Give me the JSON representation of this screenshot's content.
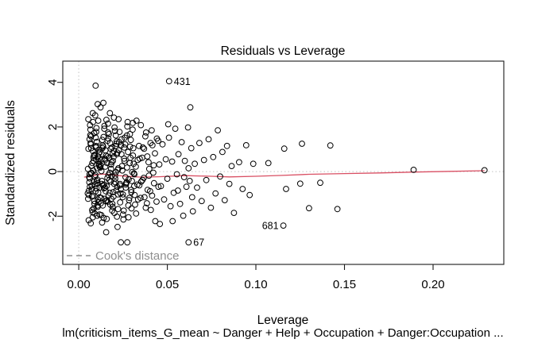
{
  "figure": {
    "title": "Residuals vs Leverage",
    "xlabel": "Leverage",
    "ylabel": "Standardized residuals",
    "caption": "lm(criticism_items_G_mean ~ Danger + Help + Occupation + Danger:Occupation  ...",
    "legend_label": "Cook's distance"
  },
  "colors": {
    "points": "#000000",
    "smoother_line": "#d94f63",
    "reference_dotted": "#c3c3c3",
    "legend_gray": "#8f8f8f",
    "axis": "#1a1a1a",
    "background": "#ffffff"
  },
  "chart_data": {
    "type": "scatter",
    "title": "Residuals vs Leverage",
    "xlabel": "Leverage",
    "ylabel": "Standardized residuals",
    "caption": "lm(criticism_items_G_mean ~ Danger + Help + Occupation + Danger:Occupation  ...",
    "xlim": [
      -0.009,
      0.2399
    ],
    "ylim": [
      -4.16,
      4.95
    ],
    "grid": false,
    "x_ticks": [
      {
        "v": 0.0,
        "label": "0.00"
      },
      {
        "v": 0.05,
        "label": "0.05"
      },
      {
        "v": 0.1,
        "label": "0.10"
      },
      {
        "v": 0.15,
        "label": "0.15"
      },
      {
        "v": 0.2,
        "label": "0.20"
      }
    ],
    "y_ticks": [
      {
        "v": -2,
        "label": "-2"
      },
      {
        "v": 0,
        "label": "0"
      },
      {
        "v": 2,
        "label": "2"
      },
      {
        "v": 4,
        "label": "4"
      }
    ],
    "reference_lines": {
      "horizontal_at": 0,
      "vertical_at": 0,
      "style": "dotted"
    },
    "legend": {
      "label": "Cook's distance",
      "position": "bottom-left",
      "line_style": "dashed"
    },
    "labeled_points": [
      {
        "id": "431",
        "x": 0.051,
        "y": 4.05,
        "side": "right"
      },
      {
        "id": "67",
        "x": 0.062,
        "y": -3.17,
        "side": "right"
      },
      {
        "id": "681",
        "x": 0.1155,
        "y": -2.42,
        "side": "left"
      }
    ],
    "smoother": [
      [
        0.003,
        -0.25
      ],
      [
        0.008,
        -0.18
      ],
      [
        0.013,
        -0.11
      ],
      [
        0.018,
        -0.14
      ],
      [
        0.025,
        -0.2
      ],
      [
        0.035,
        -0.25
      ],
      [
        0.045,
        -0.23
      ],
      [
        0.06,
        -0.18
      ],
      [
        0.075,
        -0.21
      ],
      [
        0.085,
        -0.24
      ],
      [
        0.1,
        -0.21
      ],
      [
        0.115,
        -0.17
      ],
      [
        0.13,
        -0.12
      ],
      [
        0.15,
        -0.09
      ],
      [
        0.17,
        -0.06
      ],
      [
        0.19,
        -0.02
      ],
      [
        0.21,
        0.01
      ],
      [
        0.229,
        0.04
      ]
    ],
    "points": [
      [
        0.0052,
        0.12
      ],
      [
        0.006,
        -0.48
      ],
      [
        0.0068,
        1.22
      ],
      [
        0.0075,
        -1.12
      ],
      [
        0.0083,
        0.63
      ],
      [
        0.0091,
        -0.22
      ],
      [
        0.0099,
        1.78
      ],
      [
        0.0107,
        -1.58
      ],
      [
        0.0115,
        0.33
      ],
      [
        0.0057,
        -0.86
      ],
      [
        0.0064,
        2.08
      ],
      [
        0.0072,
        -0.06
      ],
      [
        0.008,
        0.92
      ],
      [
        0.0088,
        -1.32
      ],
      [
        0.0096,
        1.52
      ],
      [
        0.0104,
        -1.98
      ],
      [
        0.0112,
        0.45
      ],
      [
        0.0119,
        -0.71
      ],
      [
        0.0054,
        2.35
      ],
      [
        0.0062,
        -0.31
      ],
      [
        0.007,
        1.05
      ],
      [
        0.0078,
        -1.82
      ],
      [
        0.0086,
        0.71
      ],
      [
        0.0094,
        -0.15
      ],
      [
        0.0102,
        1.33
      ],
      [
        0.011,
        -0.95
      ],
      [
        0.0118,
        0.21
      ],
      [
        0.0056,
        -2.18
      ],
      [
        0.0065,
        1.63
      ],
      [
        0.0073,
        -0.62
      ],
      [
        0.0081,
        2.22
      ],
      [
        0.0089,
        -1.45
      ],
      [
        0.0097,
        0.55
      ],
      [
        0.0105,
        -0.36
      ],
      [
        0.0113,
        0.98
      ],
      [
        0.0058,
        -1.05
      ],
      [
        0.0066,
        1.88
      ],
      [
        0.0074,
        -0.79
      ],
      [
        0.0082,
        0.05
      ],
      [
        0.009,
        -1.88
      ],
      [
        0.0098,
        1.15
      ],
      [
        0.0106,
        -0.52
      ],
      [
        0.0114,
        0.82
      ],
      [
        0.0053,
        -1.22
      ],
      [
        0.0061,
        1.45
      ],
      [
        0.0069,
        -0.08
      ],
      [
        0.0077,
        0.38
      ],
      [
        0.0085,
        -1.65
      ],
      [
        0.0093,
        2.52
      ],
      [
        0.0101,
        -0.42
      ],
      [
        0.0109,
        0.68
      ],
      [
        0.0117,
        -1.15
      ],
      [
        0.0055,
        1.02
      ],
      [
        0.0063,
        -0.68
      ],
      [
        0.0071,
        0.25
      ],
      [
        0.0079,
        -2.05
      ],
      [
        0.0087,
        1.72
      ],
      [
        0.0095,
        -0.88
      ],
      [
        0.0103,
        0.15
      ],
      [
        0.0111,
        -1.38
      ],
      [
        0.0119,
        0.88
      ],
      [
        0.0059,
        -0.25
      ],
      [
        0.0067,
        1.28
      ],
      [
        0.0076,
        -1.72
      ],
      [
        0.0084,
        0.48
      ],
      [
        0.0092,
        -0.58
      ],
      [
        0.01,
        1.95
      ],
      [
        0.0108,
        -1.25
      ],
      [
        0.0116,
        0.58
      ],
      [
        0.0051,
        -0.98
      ],
      [
        0.0095,
        3.85
      ],
      [
        0.0068,
        -2.32
      ],
      [
        0.0079,
        2.62
      ],
      [
        0.0088,
        -0.45
      ],
      [
        0.0097,
        1.08
      ],
      [
        0.0106,
        -1.52
      ],
      [
        0.0115,
        0.28
      ],
      [
        0.0061,
        -0.12
      ],
      [
        0.007,
        1.58
      ],
      [
        0.008,
        -1.08
      ],
      [
        0.009,
        0.75
      ],
      [
        0.01,
        -0.75
      ],
      [
        0.011,
        2.28
      ],
      [
        0.0117,
        -1.92
      ],
      [
        0.0107,
        3.02
      ],
      [
        0.0122,
        0.18
      ],
      [
        0.013,
        -0.55
      ],
      [
        0.0138,
        1.12
      ],
      [
        0.0146,
        -1.22
      ],
      [
        0.0154,
        0.72
      ],
      [
        0.0162,
        -0.28
      ],
      [
        0.017,
        1.68
      ],
      [
        0.0178,
        -1.48
      ],
      [
        0.0186,
        0.42
      ],
      [
        0.0194,
        -0.92
      ],
      [
        0.0202,
        1.98
      ],
      [
        0.021,
        -0.02
      ],
      [
        0.0218,
        0.85
      ],
      [
        0.0125,
        -1.42
      ],
      [
        0.0133,
        1.42
      ],
      [
        0.0141,
        -2.08
      ],
      [
        0.0149,
        0.52
      ],
      [
        0.0157,
        -0.65
      ],
      [
        0.0165,
        2.15
      ],
      [
        0.0173,
        -0.38
      ],
      [
        0.0181,
        1.02
      ],
      [
        0.0189,
        -1.75
      ],
      [
        0.0197,
        0.65
      ],
      [
        0.0205,
        -0.18
      ],
      [
        0.0213,
        1.25
      ],
      [
        0.0221,
        -1.02
      ],
      [
        0.0124,
        0.28
      ],
      [
        0.0132,
        -2.28
      ],
      [
        0.014,
        1.55
      ],
      [
        0.0148,
        -0.72
      ],
      [
        0.0156,
        2.32
      ],
      [
        0.0164,
        -1.35
      ],
      [
        0.0172,
        0.62
      ],
      [
        0.018,
        -0.45
      ],
      [
        0.0188,
        1.08
      ],
      [
        0.0196,
        -1.12
      ],
      [
        0.0204,
        1.82
      ],
      [
        0.0212,
        -0.85
      ],
      [
        0.022,
        0.08
      ],
      [
        0.0127,
        -1.95
      ],
      [
        0.0135,
        1.18
      ],
      [
        0.0143,
        -0.58
      ],
      [
        0.0151,
        0.95
      ],
      [
        0.0159,
        -1.28
      ],
      [
        0.0167,
        1.48
      ],
      [
        0.0175,
        -0.05
      ],
      [
        0.0183,
        0.32
      ],
      [
        0.0191,
        -1.58
      ],
      [
        0.0199,
        2.42
      ],
      [
        0.0207,
        -0.48
      ],
      [
        0.0215,
        0.78
      ],
      [
        0.0126,
        -1.18
      ],
      [
        0.0134,
        1.05
      ],
      [
        0.0142,
        -0.75
      ],
      [
        0.015,
        0.22
      ],
      [
        0.0158,
        -2.12
      ],
      [
        0.0166,
        1.75
      ],
      [
        0.0174,
        -0.95
      ],
      [
        0.0182,
        0.12
      ],
      [
        0.019,
        -1.45
      ],
      [
        0.0198,
        0.92
      ],
      [
        0.0206,
        -0.32
      ],
      [
        0.0214,
        1.35
      ],
      [
        0.0222,
        -1.68
      ],
      [
        0.0129,
        0.55
      ],
      [
        0.0137,
        -0.62
      ],
      [
        0.0145,
        2.05
      ],
      [
        0.0153,
        -1.32
      ],
      [
        0.0161,
        0.68
      ],
      [
        0.0169,
        -1.08
      ],
      [
        0.0177,
        1.28
      ],
      [
        0.0185,
        -0.22
      ],
      [
        0.0193,
        0.48
      ],
      [
        0.0201,
        -1.85
      ],
      [
        0.0209,
        1.62
      ],
      [
        0.0217,
        -0.68
      ],
      [
        0.0128,
        0.02
      ],
      [
        0.0136,
        -1.52
      ],
      [
        0.0144,
        1.92
      ],
      [
        0.0152,
        -0.88
      ],
      [
        0.016,
        0.38
      ],
      [
        0.0168,
        -0.15
      ],
      [
        0.0176,
        2.62
      ],
      [
        0.0184,
        -1.22
      ],
      [
        0.0192,
        0.82
      ],
      [
        0.02,
        -0.55
      ],
      [
        0.0208,
        1.15
      ],
      [
        0.0216,
        -2.02
      ],
      [
        0.0123,
        2.88
      ],
      [
        0.0131,
        -0.42
      ],
      [
        0.0139,
        3.08
      ],
      [
        0.0147,
        0.58
      ],
      [
        0.0155,
        -2.72
      ],
      [
        0.0163,
        1.38
      ],
      [
        0.0219,
        -2.48
      ],
      [
        0.0224,
        0.15
      ],
      [
        0.0232,
        -0.62
      ],
      [
        0.024,
        1.18
      ],
      [
        0.0248,
        -1.15
      ],
      [
        0.0256,
        0.58
      ],
      [
        0.0264,
        -0.25
      ],
      [
        0.0272,
        1.62
      ],
      [
        0.028,
        -1.52
      ],
      [
        0.0288,
        0.38
      ],
      [
        0.0296,
        -0.82
      ],
      [
        0.0304,
        1.88
      ],
      [
        0.0312,
        -0.08
      ],
      [
        0.0226,
        0.95
      ],
      [
        0.0234,
        -1.38
      ],
      [
        0.0242,
        1.45
      ],
      [
        0.025,
        -1.92
      ],
      [
        0.0258,
        0.48
      ],
      [
        0.0266,
        -0.58
      ],
      [
        0.0274,
        2.02
      ],
      [
        0.0282,
        -0.35
      ],
      [
        0.029,
        1.12
      ],
      [
        0.0298,
        -1.65
      ],
      [
        0.0306,
        0.72
      ],
      [
        0.0314,
        -0.12
      ],
      [
        0.0228,
        1.32
      ],
      [
        0.0236,
        -0.98
      ],
      [
        0.0244,
        0.25
      ],
      [
        0.0252,
        -2.15
      ],
      [
        0.026,
        1.52
      ],
      [
        0.0268,
        -0.52
      ],
      [
        0.0276,
        2.22
      ],
      [
        0.0284,
        -1.28
      ],
      [
        0.0292,
        0.62
      ],
      [
        0.03,
        -0.42
      ],
      [
        0.0308,
        1.05
      ],
      [
        0.0316,
        -1.05
      ],
      [
        0.023,
        1.78
      ],
      [
        0.0238,
        -0.78
      ],
      [
        0.0246,
        0.05
      ],
      [
        0.0254,
        -1.75
      ],
      [
        0.0262,
        1.22
      ],
      [
        0.027,
        -0.48
      ],
      [
        0.0278,
        0.88
      ],
      [
        0.0286,
        -1.18
      ],
      [
        0.0294,
        1.42
      ],
      [
        0.0302,
        -0.02
      ],
      [
        0.031,
        0.35
      ],
      [
        0.0318,
        -1.48
      ],
      [
        0.0225,
        2.35
      ],
      [
        0.0233,
        -0.55
      ],
      [
        0.0241,
        0.78
      ],
      [
        0.0249,
        -1.02
      ],
      [
        0.0257,
        1.08
      ],
      [
        0.0265,
        -0.72
      ],
      [
        0.0273,
        0.18
      ],
      [
        0.0281,
        -2.05
      ],
      [
        0.0289,
        1.68
      ],
      [
        0.0297,
        -0.92
      ],
      [
        0.0238,
        -3.17
      ],
      [
        0.0274,
        -3.17
      ],
      [
        0.0305,
        2.18
      ],
      [
        0.0313,
        -0.65
      ],
      [
        0.0322,
        0.22
      ],
      [
        0.0331,
        -0.58
      ],
      [
        0.034,
        1.15
      ],
      [
        0.0349,
        -1.18
      ],
      [
        0.0358,
        0.62
      ],
      [
        0.0367,
        -0.28
      ],
      [
        0.0376,
        1.58
      ],
      [
        0.0385,
        -1.42
      ],
      [
        0.0394,
        0.42
      ],
      [
        0.0403,
        -0.88
      ],
      [
        0.0412,
        1.85
      ],
      [
        0.0421,
        -0.05
      ],
      [
        0.043,
        0.82
      ],
      [
        0.0439,
        -1.35
      ],
      [
        0.0448,
        1.38
      ],
      [
        0.0324,
        -1.88
      ],
      [
        0.0333,
        0.52
      ],
      [
        0.0342,
        -0.62
      ],
      [
        0.0351,
        2.08
      ],
      [
        0.036,
        -0.38
      ],
      [
        0.0369,
        1.02
      ],
      [
        0.0378,
        -1.62
      ],
      [
        0.0387,
        0.68
      ],
      [
        0.0396,
        -0.18
      ],
      [
        0.0405,
        1.28
      ],
      [
        0.0414,
        -1.08
      ],
      [
        0.0423,
        0.28
      ],
      [
        0.0432,
        -2.22
      ],
      [
        0.0441,
        1.48
      ],
      [
        0.045,
        -0.68
      ],
      [
        0.0326,
        2.28
      ],
      [
        0.0335,
        -1.25
      ],
      [
        0.0344,
        0.58
      ],
      [
        0.0353,
        -0.45
      ],
      [
        0.0362,
        1.08
      ],
      [
        0.0371,
        -1.15
      ],
      [
        0.038,
        1.75
      ],
      [
        0.0389,
        -0.82
      ],
      [
        0.0398,
        0.12
      ],
      [
        0.0407,
        -1.72
      ],
      [
        0.0416,
        1.18
      ],
      [
        0.0425,
        -0.52
      ],
      [
        0.0455,
        0.32
      ],
      [
        0.0464,
        -0.65
      ],
      [
        0.0473,
        1.22
      ],
      [
        0.0482,
        -1.25
      ],
      [
        0.0491,
        0.55
      ],
      [
        0.05,
        -0.32
      ],
      [
        0.0509,
        1.52
      ],
      [
        0.0518,
        -1.55
      ],
      [
        0.0527,
        0.45
      ],
      [
        0.0536,
        -0.95
      ],
      [
        0.0545,
        1.92
      ],
      [
        0.0554,
        -0.12
      ],
      [
        0.0563,
        0.78
      ],
      [
        0.0572,
        -1.45
      ],
      [
        0.0581,
        1.32
      ],
      [
        0.059,
        -1.98
      ],
      [
        0.0599,
        0.48
      ],
      [
        0.0608,
        -0.68
      ],
      [
        0.0617,
        1.98
      ],
      [
        0.0626,
        -0.42
      ],
      [
        0.0635,
        1.05
      ],
      [
        0.0644,
        -1.78
      ],
      [
        0.0458,
        -2.35
      ],
      [
        0.053,
        -2.22
      ],
      [
        0.0595,
        -0.25
      ],
      [
        0.062,
        0.15
      ],
      [
        0.064,
        -1.15
      ],
      [
        0.0505,
        2.12
      ],
      [
        0.056,
        -0.85
      ],
      [
        0.063,
        2.88
      ],
      [
        0.0655,
        0.35
      ],
      [
        0.0668,
        -0.72
      ],
      [
        0.0681,
        1.28
      ],
      [
        0.0694,
        -1.32
      ],
      [
        0.0707,
        0.52
      ],
      [
        0.072,
        -0.38
      ],
      [
        0.0733,
        1.45
      ],
      [
        0.0746,
        -1.62
      ],
      [
        0.0759,
        0.65
      ],
      [
        0.0772,
        -0.98
      ],
      [
        0.0785,
        1.85
      ],
      [
        0.0798,
        -0.22
      ],
      [
        0.0811,
        0.88
      ],
      [
        0.0824,
        -1.28
      ],
      [
        0.0837,
        1.15
      ],
      [
        0.085,
        -0.55
      ],
      [
        0.0863,
        0.25
      ],
      [
        0.0876,
        -1.85
      ],
      [
        0.0905,
        0.42
      ],
      [
        0.0925,
        -0.78
      ],
      [
        0.0945,
        1.18
      ],
      [
        0.0965,
        -1.05
      ],
      [
        0.0985,
        0.35
      ],
      [
        0.107,
        0.38
      ],
      [
        0.116,
        1.03
      ],
      [
        0.126,
        1.25
      ],
      [
        0.117,
        -0.78
      ],
      [
        0.125,
        -0.54
      ],
      [
        0.1363,
        -0.5
      ],
      [
        0.13,
        -1.64
      ],
      [
        0.142,
        1.17
      ],
      [
        0.146,
        -1.68
      ],
      [
        0.051,
        4.05
      ],
      [
        0.062,
        -3.17
      ],
      [
        0.1155,
        -2.42
      ],
      [
        0.189,
        0.08
      ],
      [
        0.229,
        0.06
      ]
    ]
  }
}
